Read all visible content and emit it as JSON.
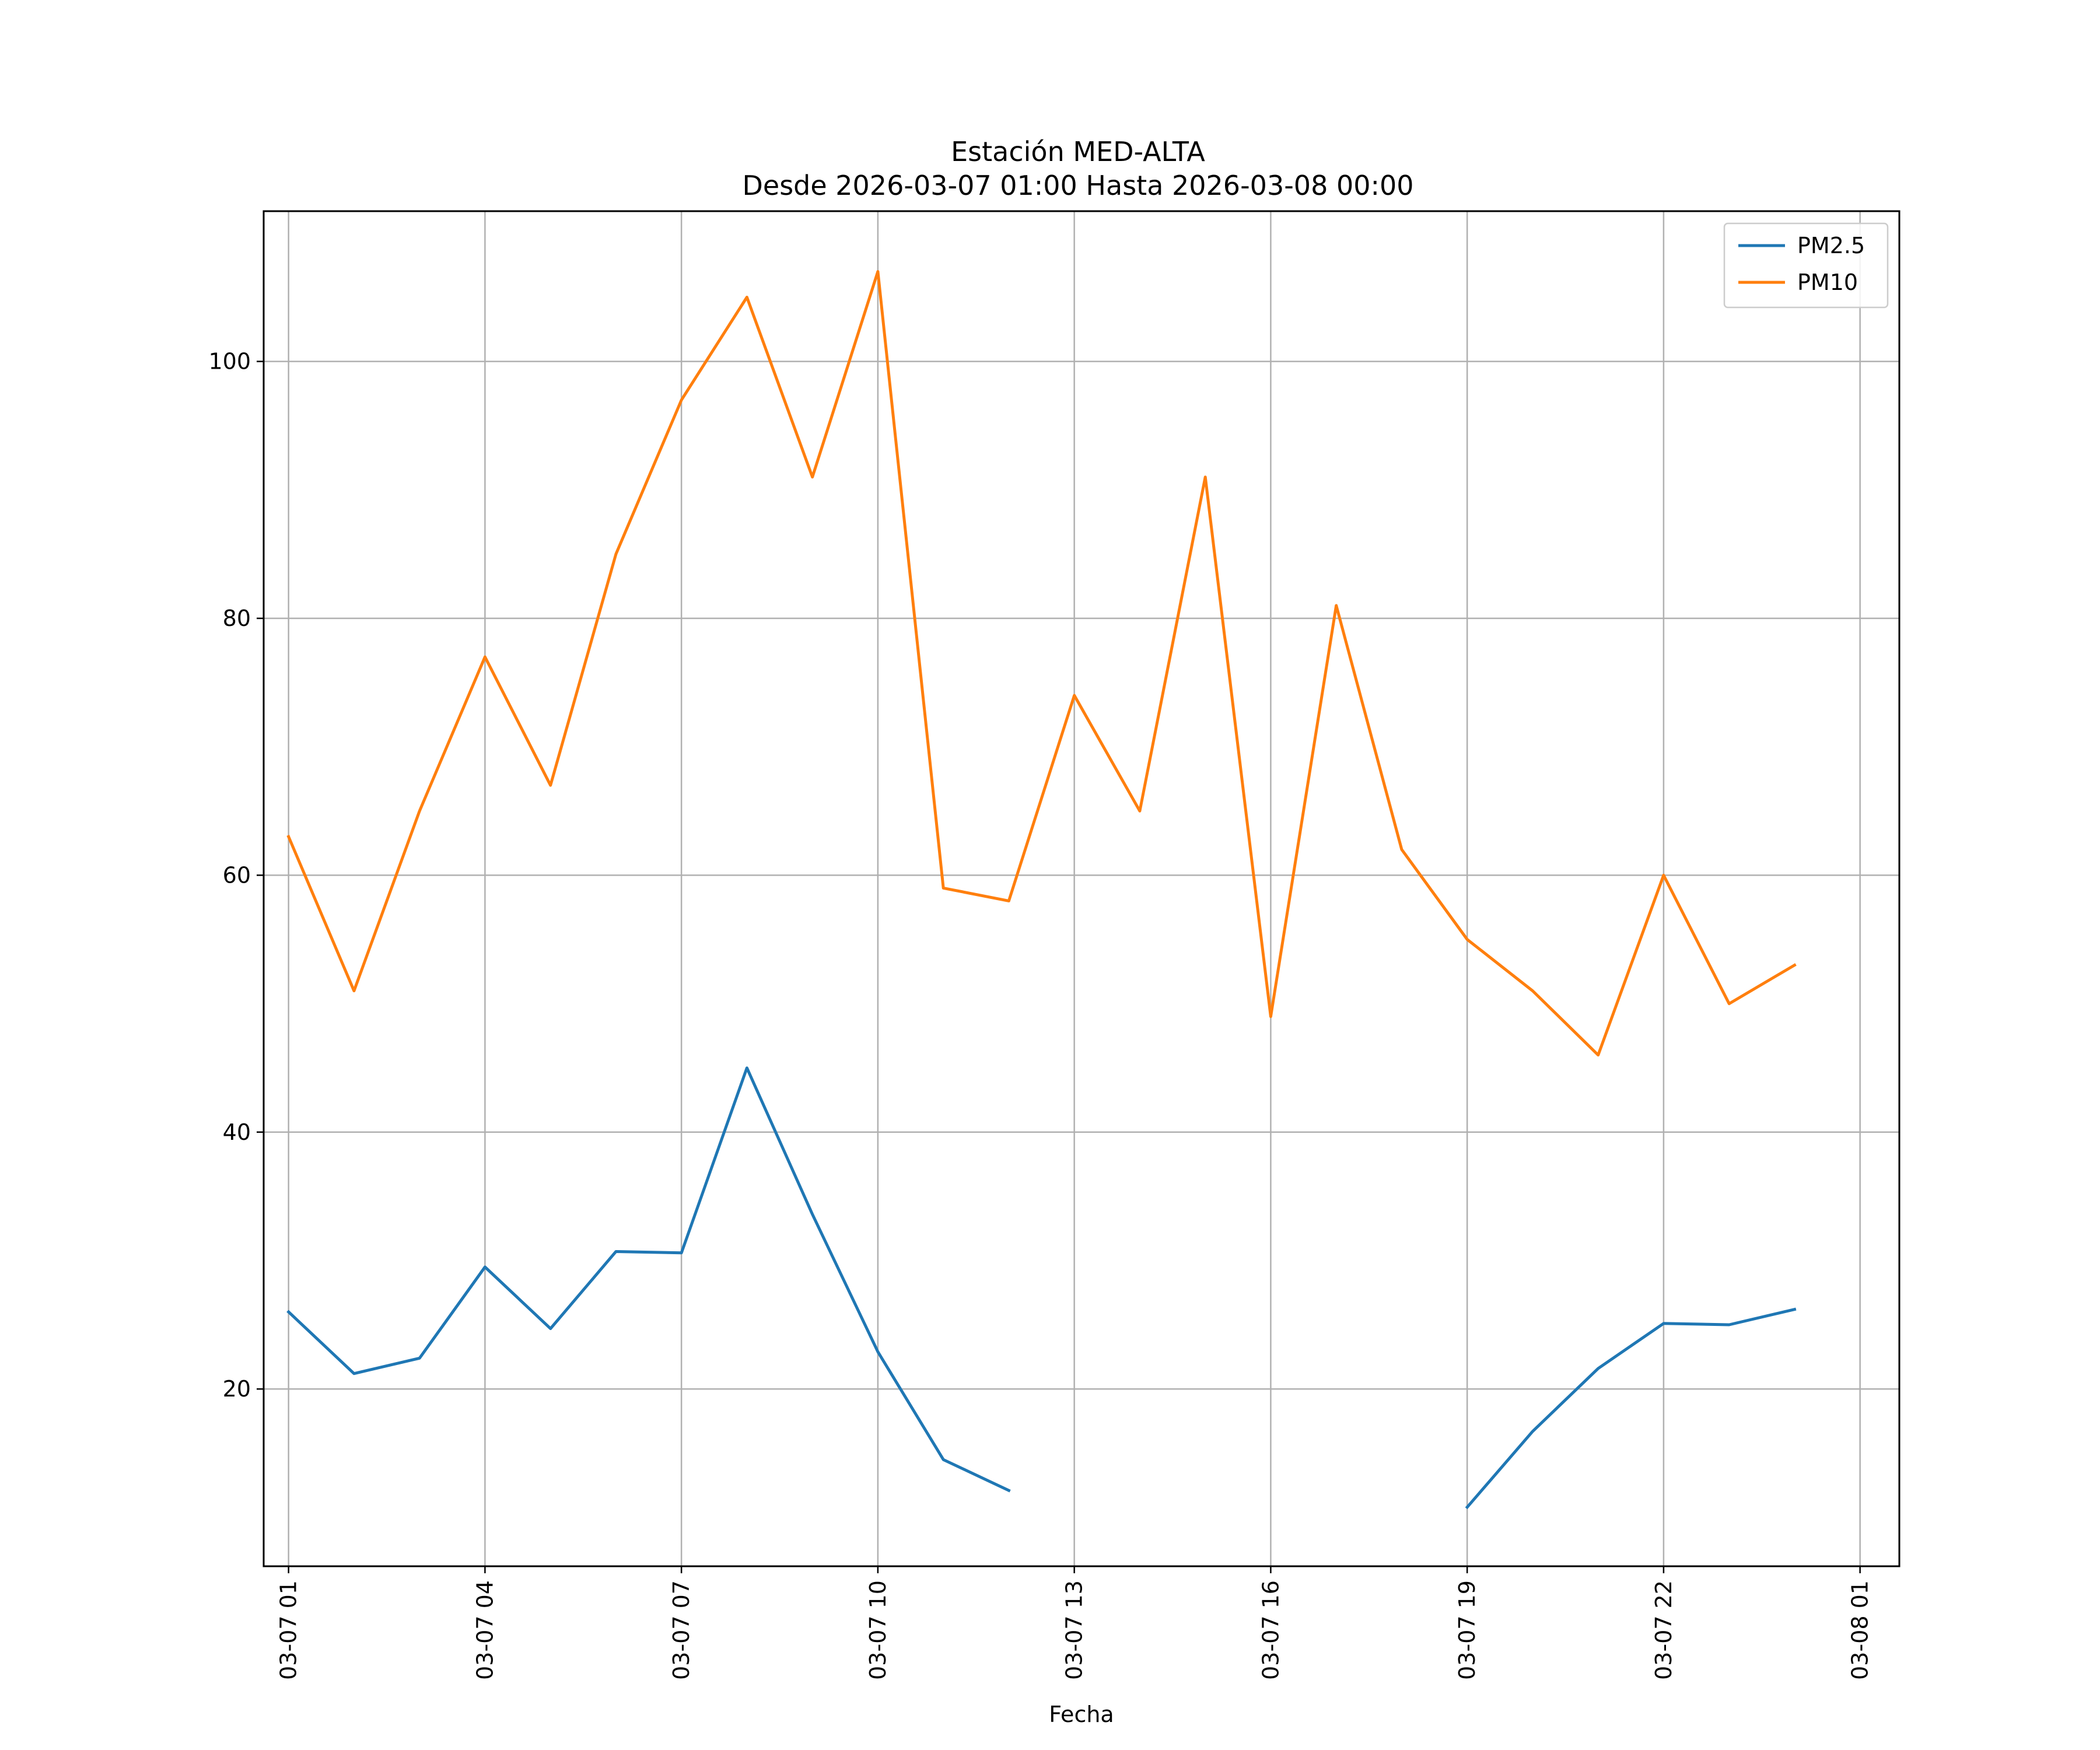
{
  "chart_data": {
    "type": "line",
    "title": "Estación MED-ALTA",
    "subtitle": "Desde 2026-03-07 01:00 Hasta 2026-03-08 00:00",
    "xlabel": "Fecha",
    "ylabel": "",
    "x": [
      "03-07 01",
      "03-07 02",
      "03-07 03",
      "03-07 04",
      "03-07 05",
      "03-07 06",
      "03-07 07",
      "03-07 08",
      "03-07 09",
      "03-07 10",
      "03-07 11",
      "03-07 12",
      "03-07 13",
      "03-07 14",
      "03-07 15",
      "03-07 16",
      "03-07 17",
      "03-07 18",
      "03-07 19",
      "03-07 20",
      "03-07 21",
      "03-07 22",
      "03-07 23",
      "03-08 00"
    ],
    "x_ticks": [
      "03-07 01",
      "03-07 04",
      "03-07 07",
      "03-07 10",
      "03-07 13",
      "03-07 16",
      "03-07 19",
      "03-07 22",
      "03-08 01"
    ],
    "x_range_hours": [
      -0.38,
      24.6
    ],
    "y_ticks": [
      20,
      40,
      60,
      80,
      100
    ],
    "ylim": [
      6.2,
      111.7
    ],
    "grid": true,
    "legend_position": "top-right",
    "series": [
      {
        "name": "PM2.5",
        "color": "#1f77b4",
        "values": [
          26,
          21.2,
          22.4,
          29.5,
          24.7,
          30.7,
          30.6,
          45,
          33.6,
          22.9,
          14.5,
          12.1,
          null,
          null,
          null,
          null,
          null,
          null,
          10.8,
          16.7,
          21.6,
          25.1,
          25,
          26.2
        ]
      },
      {
        "name": "PM10",
        "color": "#ff7f0e",
        "values": [
          63,
          51,
          65,
          77,
          67,
          85,
          97,
          105,
          91,
          107,
          59,
          58,
          74,
          65,
          91,
          49,
          81,
          62,
          55,
          51,
          46,
          60,
          50,
          53
        ]
      }
    ]
  }
}
